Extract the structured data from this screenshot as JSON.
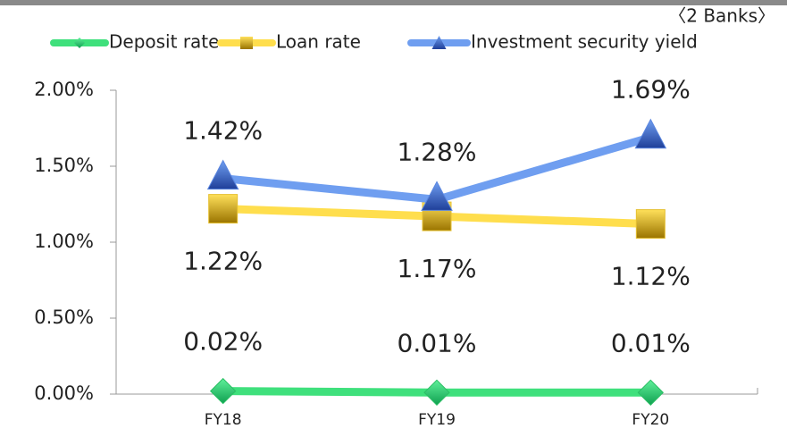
{
  "chart_data": {
    "type": "line",
    "subtitle": "〈2 Banks〉",
    "categories": [
      "FY18",
      "FY19",
      "FY20"
    ],
    "series": [
      {
        "name": "Deposit rate",
        "color": "#3fe07c",
        "values": [
          0.02,
          0.01,
          0.01
        ],
        "value_labels": [
          "0.02%",
          "0.01%",
          "0.01%"
        ]
      },
      {
        "name": "Loan rate",
        "color": "#ffde4d",
        "values": [
          1.22,
          1.17,
          1.12
        ],
        "value_labels": [
          "1.22%",
          "1.17%",
          "1.12%"
        ]
      },
      {
        "name": "Investment security yield",
        "color": "#6f9ef0",
        "values": [
          1.42,
          1.28,
          1.69
        ],
        "value_labels": [
          "1.42%",
          "1.28%",
          "1.69%"
        ]
      }
    ],
    "ylim": [
      0,
      2
    ],
    "yticks": [
      {
        "value": 0,
        "label": "0.00%"
      },
      {
        "value": 0.5,
        "label": "0.50%"
      },
      {
        "value": 1,
        "label": "1.00%"
      },
      {
        "value": 1.5,
        "label": "1.50%"
      },
      {
        "value": 2,
        "label": "2.00%"
      }
    ],
    "legend": "top"
  }
}
